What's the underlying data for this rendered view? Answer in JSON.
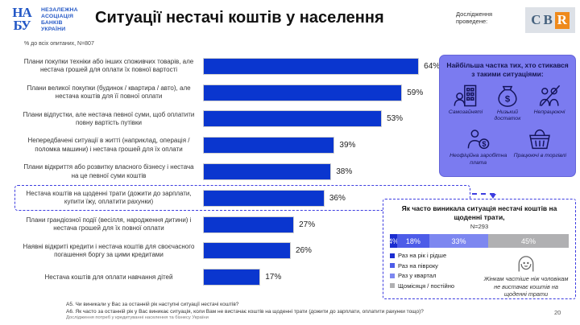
{
  "header": {
    "logo_monogram_top": "НА",
    "logo_monogram_bottom": "БУ",
    "logo_lines": [
      "НЕЗАЛЕЖНА",
      "АСОЦІАЦІЯ",
      "БАНКІВ",
      "УКРАЇНИ"
    ],
    "title": "Ситуації нестачі коштів у населення",
    "subtitle": "% до всіх опитаних, N=807",
    "research_label": "Дослідження проведене:",
    "cbr_letters": {
      "c": "C",
      "b": "B",
      "r": "R"
    }
  },
  "chart_data": [
    {
      "type": "bar",
      "orientation": "horizontal",
      "title": "Ситуації нестачі коштів у населення",
      "subtitle": "% до всіх опитаних, N=807",
      "categories": [
        "Плани покупки техніки або інших споживчих товарів, але нестача грошей для оплати їх повної вартості",
        "Плани великої покупки (будинок / квартира / авто), але нестача коштів для її повної оплати",
        "Плани відпустки, але нестача певної суми, щоб оплатити повну вартість путівки",
        "Непередбачені ситуації в житті (наприклад, операція / поломка машини) і нестача грошей для їх оплати",
        "Плани відкриття або розвитку власного бізнесу і нестача на це певної суми коштів",
        "Нестача коштів на щоденні трати (дожити до зарплати, купити їжу, оплатити рахунки)",
        "Плани грандіозної події (весілля, народження дитини) і нестача грошей для їх повної оплати",
        "Наявні відкриті кредити і нестача коштів для своєчасного погашення боргу за цими кредитами",
        "Нестача коштів для оплати навчання дітей"
      ],
      "values": [
        64,
        59,
        53,
        39,
        38,
        36,
        27,
        26,
        17
      ],
      "unit": "%",
      "bar_color": "#0a36cf",
      "highlighted_index": 5,
      "xlim": [
        0,
        70
      ],
      "grid": false
    },
    {
      "type": "bar",
      "subtype": "stacked",
      "orientation": "horizontal",
      "title": "Як часто виникала ситуація нестачі коштів на щоденні трати,",
      "sample": "N=293",
      "categories": [
        "Раз на рік і рідше",
        "Раз на півроку",
        "Раз у квартал",
        "Щомісяця / постійно"
      ],
      "values": [
        4,
        18,
        33,
        45
      ],
      "colors": [
        "#1b2dd0",
        "#4d5ce8",
        "#7d87f0",
        "#b0b0b2"
      ],
      "unit": "%",
      "legend_position": "bottom-left",
      "annotation": "Жінкам частіше ніж чоловікам не вистачає коштів на щоденні трати"
    }
  ],
  "side_panel": {
    "title": "Найбільша частка тих, хто стикався з такими ситуаціями:",
    "accent_color": "#7b7bf0",
    "groups": [
      {
        "icon": "self-employed-icon",
        "label": "Самозайняті"
      },
      {
        "icon": "money-bag-icon",
        "label": "Низький достаток"
      },
      {
        "icon": "unemployed-icon",
        "label": "Непрацюючі"
      },
      {
        "icon": "unofficial-salary-icon",
        "label": "Неофіційна заробітна плата"
      },
      {
        "icon": "trade-basket-icon",
        "label": "Працюючі в торгівлі"
      }
    ]
  },
  "footnotes": {
    "a5": "А5. Чи виникали у Вас за останній рік наступні ситуації нестачі коштів?",
    "a6": "А6. Як часто за останній рік у Вас виникає ситуація, коли Вам не вистачає коштів на щоденні трати (дожити до зарплати, оплатити рахунки тощо)?"
  },
  "footer": {
    "source": "Дослідження потреб у кредитуванні населення та бізнесу України",
    "page": "20"
  }
}
